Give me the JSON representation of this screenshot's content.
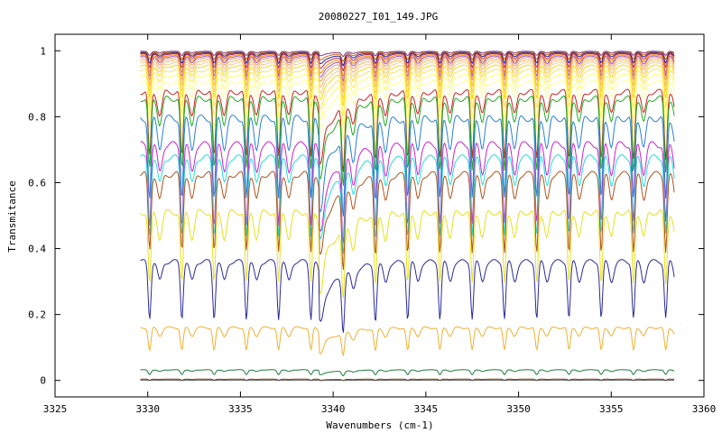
{
  "chart_data": {
    "type": "line",
    "title": "20080227_I01_149.JPG",
    "xlabel": "Wavenumbers (cm-1)",
    "ylabel": "Transmitance",
    "xlim": [
      3325,
      3360
    ],
    "ylim": [
      -0.05,
      1.05
    ],
    "x_ticks": [
      3325,
      3330,
      3335,
      3340,
      3345,
      3350,
      3355,
      3360
    ],
    "x_tick_labels": [
      "3325",
      "3330",
      "3335",
      "3340",
      "3345",
      "3350",
      "3355",
      "3360"
    ],
    "y_ticks": [
      0,
      0.2,
      0.4,
      0.6,
      0.8,
      1
    ],
    "y_tick_labels": [
      "0",
      "0.2",
      "0.4",
      "0.6",
      "0.8",
      "1"
    ],
    "x_range_data": [
      3329.6,
      3358.4
    ],
    "line_spacing_cm1": 1.74,
    "first_line_cm1": 3330.1,
    "edge_cm1": 3339.25,
    "grid": false,
    "legend": "none",
    "series": [
      {
        "color": "#8b3a8b",
        "baseline": 0.998,
        "depth": 0.012
      },
      {
        "color": "#cc6a00",
        "baseline": 0.996,
        "depth": 0.022
      },
      {
        "color": "#1e1e9e",
        "baseline": 0.993,
        "depth": 0.03
      },
      {
        "color": "#bb2244",
        "baseline": 0.99,
        "depth": 0.04
      },
      {
        "color": "#ff8c00",
        "baseline": 0.986,
        "depth": 0.05
      },
      {
        "color": "#9b59b6",
        "baseline": 0.982,
        "depth": 0.058
      },
      {
        "color": "#e9967a",
        "baseline": 0.977,
        "depth": 0.065
      },
      {
        "color": "#ffb347",
        "baseline": 0.97,
        "depth": 0.075
      },
      {
        "color": "#f5c6a0",
        "baseline": 0.962,
        "depth": 0.085
      },
      {
        "color": "#ffd700",
        "baseline": 0.953,
        "depth": 0.095
      },
      {
        "color": "#ffe066",
        "baseline": 0.94,
        "depth": 0.11
      },
      {
        "color": "#ffff66",
        "baseline": 0.925,
        "depth": 0.125
      },
      {
        "color": "#ffff99",
        "baseline": 0.905,
        "depth": 0.145
      },
      {
        "color": "#cc2222",
        "baseline": 0.875,
        "depth": 0.2
      },
      {
        "color": "#22aa22",
        "baseline": 0.855,
        "depth": 0.22
      },
      {
        "color": "#2a7fd4",
        "baseline": 0.795,
        "depth": 0.25
      },
      {
        "color": "#cc22cc",
        "baseline": 0.715,
        "depth": 0.24
      },
      {
        "color": "#22dddd",
        "baseline": 0.675,
        "depth": 0.23
      },
      {
        "color": "#b0521e",
        "baseline": 0.625,
        "depth": 0.23
      },
      {
        "color": "#e8e020",
        "baseline": 0.51,
        "depth": 0.22
      },
      {
        "color": "#2a2a9a",
        "baseline": 0.36,
        "depth": 0.17
      },
      {
        "color": "#f0b030",
        "baseline": 0.16,
        "depth": 0.07
      },
      {
        "color": "#1f7a3a",
        "baseline": 0.032,
        "depth": 0.014
      },
      {
        "color": "#8b4513",
        "baseline": 0.004,
        "depth": 0.003
      },
      {
        "color": "#555555",
        "baseline": 0.001,
        "depth": 0.001
      }
    ]
  }
}
